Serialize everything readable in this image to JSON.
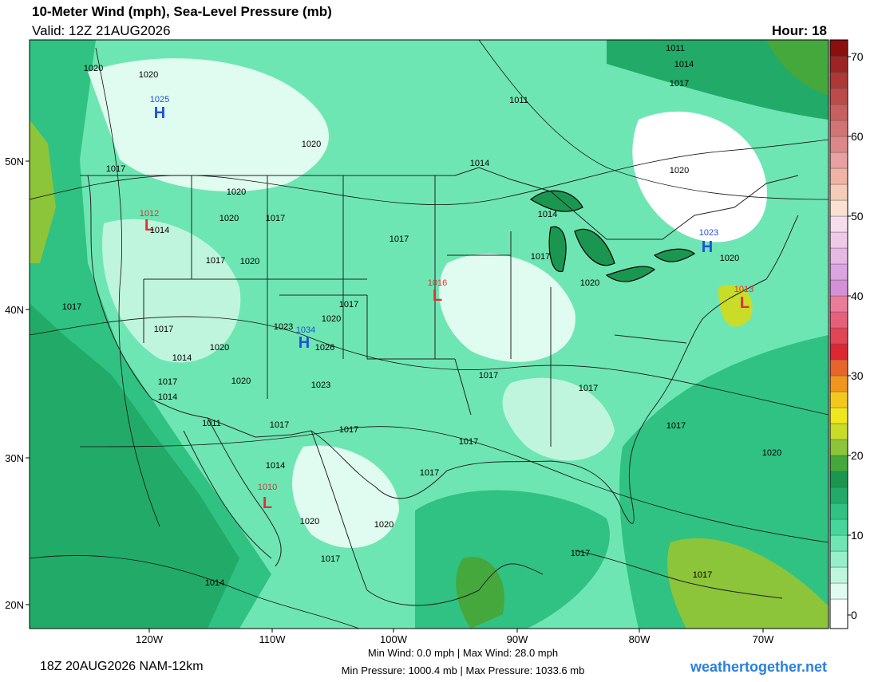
{
  "header": {
    "title": "10-Meter Wind (mph), Sea-Level Pressure (mb)",
    "valid": "Valid: 12Z 21AUG2026",
    "hour": "Hour: 18"
  },
  "footer": {
    "run": "18Z 20AUG2026 NAM-12km",
    "wind_stats": "Min Wind:  0.0 mph | Max Wind: 28.0 mph",
    "pressure_stats": "Min Pressure: 1000.4 mb | Max Pressure: 1033.6 mb",
    "site": "weathertogether.net"
  },
  "map": {
    "lat_labels": [
      "50N",
      "40N",
      "30N",
      "20N"
    ],
    "lon_labels": [
      "120W",
      "110W",
      "100W",
      "90W",
      "80W",
      "70W"
    ],
    "pressure_labels": [
      {
        "text": "1020",
        "color": "#000000"
      },
      {
        "text": "1020",
        "color": "#000000"
      },
      {
        "text": "1025",
        "color": "#1f4fe0"
      },
      {
        "text": "H",
        "color": "#1f4fe0"
      },
      {
        "text": "1020",
        "color": "#000000"
      },
      {
        "text": "1017",
        "color": "#000000"
      },
      {
        "text": "1020",
        "color": "#000000"
      },
      {
        "text": "1012",
        "color": "#e03030"
      },
      {
        "text": "L",
        "color": "#e03030"
      },
      {
        "text": "1014",
        "color": "#000000"
      },
      {
        "text": "1020",
        "color": "#000000"
      },
      {
        "text": "1017",
        "color": "#000000"
      },
      {
        "text": "1017",
        "color": "#000000"
      },
      {
        "text": "1020",
        "color": "#000000"
      },
      {
        "text": "1017",
        "color": "#000000"
      },
      {
        "text": "1016",
        "color": "#e03030"
      },
      {
        "text": "L",
        "color": "#e03030"
      },
      {
        "text": "1017",
        "color": "#000000"
      },
      {
        "text": "1017",
        "color": "#000000"
      },
      {
        "text": "1020",
        "color": "#000000"
      },
      {
        "text": "1023",
        "color": "#000000"
      },
      {
        "text": "1034",
        "color": "#1f4fe0"
      },
      {
        "text": "H",
        "color": "#1f4fe0"
      },
      {
        "text": "1026",
        "color": "#000000"
      },
      {
        "text": "1017",
        "color": "#000000"
      },
      {
        "text": "1020",
        "color": "#000000"
      },
      {
        "text": "1014",
        "color": "#000000"
      },
      {
        "text": "1020",
        "color": "#000000"
      },
      {
        "text": "1023",
        "color": "#000000"
      },
      {
        "text": "1017",
        "color": "#000000"
      },
      {
        "text": "1014",
        "color": "#000000"
      },
      {
        "text": "1017",
        "color": "#000000"
      },
      {
        "text": "1017",
        "color": "#000000"
      },
      {
        "text": "1011",
        "color": "#000000"
      },
      {
        "text": "1017",
        "color": "#000000"
      },
      {
        "text": "1017",
        "color": "#000000"
      },
      {
        "text": "1017",
        "color": "#000000"
      },
      {
        "text": "1017",
        "color": "#000000"
      },
      {
        "text": "1014",
        "color": "#000000"
      },
      {
        "text": "1010",
        "color": "#e03030"
      },
      {
        "text": "L",
        "color": "#e03030"
      },
      {
        "text": "1017",
        "color": "#000000"
      },
      {
        "text": "1020",
        "color": "#000000"
      },
      {
        "text": "1020",
        "color": "#000000"
      },
      {
        "text": "1020",
        "color": "#000000"
      },
      {
        "text": "1017",
        "color": "#000000"
      },
      {
        "text": "1017",
        "color": "#000000"
      },
      {
        "text": "1014",
        "color": "#000000"
      },
      {
        "text": "1017",
        "color": "#000000"
      },
      {
        "text": "1011",
        "color": "#000000"
      },
      {
        "text": "1014",
        "color": "#000000"
      },
      {
        "text": "1017",
        "color": "#000000"
      },
      {
        "text": "1011",
        "color": "#000000"
      },
      {
        "text": "1014",
        "color": "#000000"
      },
      {
        "text": "1020",
        "color": "#000000"
      },
      {
        "text": "1014",
        "color": "#000000"
      },
      {
        "text": "1023",
        "color": "#1f4fe0"
      },
      {
        "text": "H",
        "color": "#1f4fe0"
      },
      {
        "text": "1020",
        "color": "#000000"
      },
      {
        "text": "1017",
        "color": "#000000"
      },
      {
        "text": "1020",
        "color": "#000000"
      },
      {
        "text": "1013",
        "color": "#e03030"
      },
      {
        "text": "L",
        "color": "#e03030"
      }
    ]
  },
  "colorbar": {
    "lim": [
      -1.7,
      72.1
    ],
    "bins": [
      -1.7,
      2,
      4,
      6,
      8,
      10,
      12,
      14,
      16,
      18,
      20,
      22,
      24,
      26,
      28,
      30,
      32,
      34,
      36,
      38,
      40,
      42,
      44,
      46,
      48,
      50,
      52,
      54,
      56,
      58,
      60,
      62,
      64,
      66,
      68,
      70,
      72.1
    ],
    "colors": [
      "#ffffff",
      "#e0fbef",
      "#bff5dd",
      "#96efc9",
      "#6ee6b3",
      "#45d69b",
      "#30c283",
      "#22ab68",
      "#1a9650",
      "#45a83c",
      "#8cc43a",
      "#c8dc28",
      "#f0e61e",
      "#f5c81e",
      "#f0961e",
      "#e8642a",
      "#dc2832",
      "#e04656",
      "#e6607a",
      "#ea7c9a",
      "#d490d6",
      "#dca4e0",
      "#e6b8e4",
      "#eecae8",
      "#f6dcec",
      "#fae2d2",
      "#f5ccb8",
      "#f0b4a4",
      "#e8a0a0",
      "#dc8888",
      "#d27474",
      "#c86060",
      "#bc4c4c",
      "#ae3838",
      "#9c2424",
      "#8a1010"
    ],
    "ticks": [
      0,
      10,
      20,
      30,
      40,
      50,
      60,
      70
    ]
  }
}
